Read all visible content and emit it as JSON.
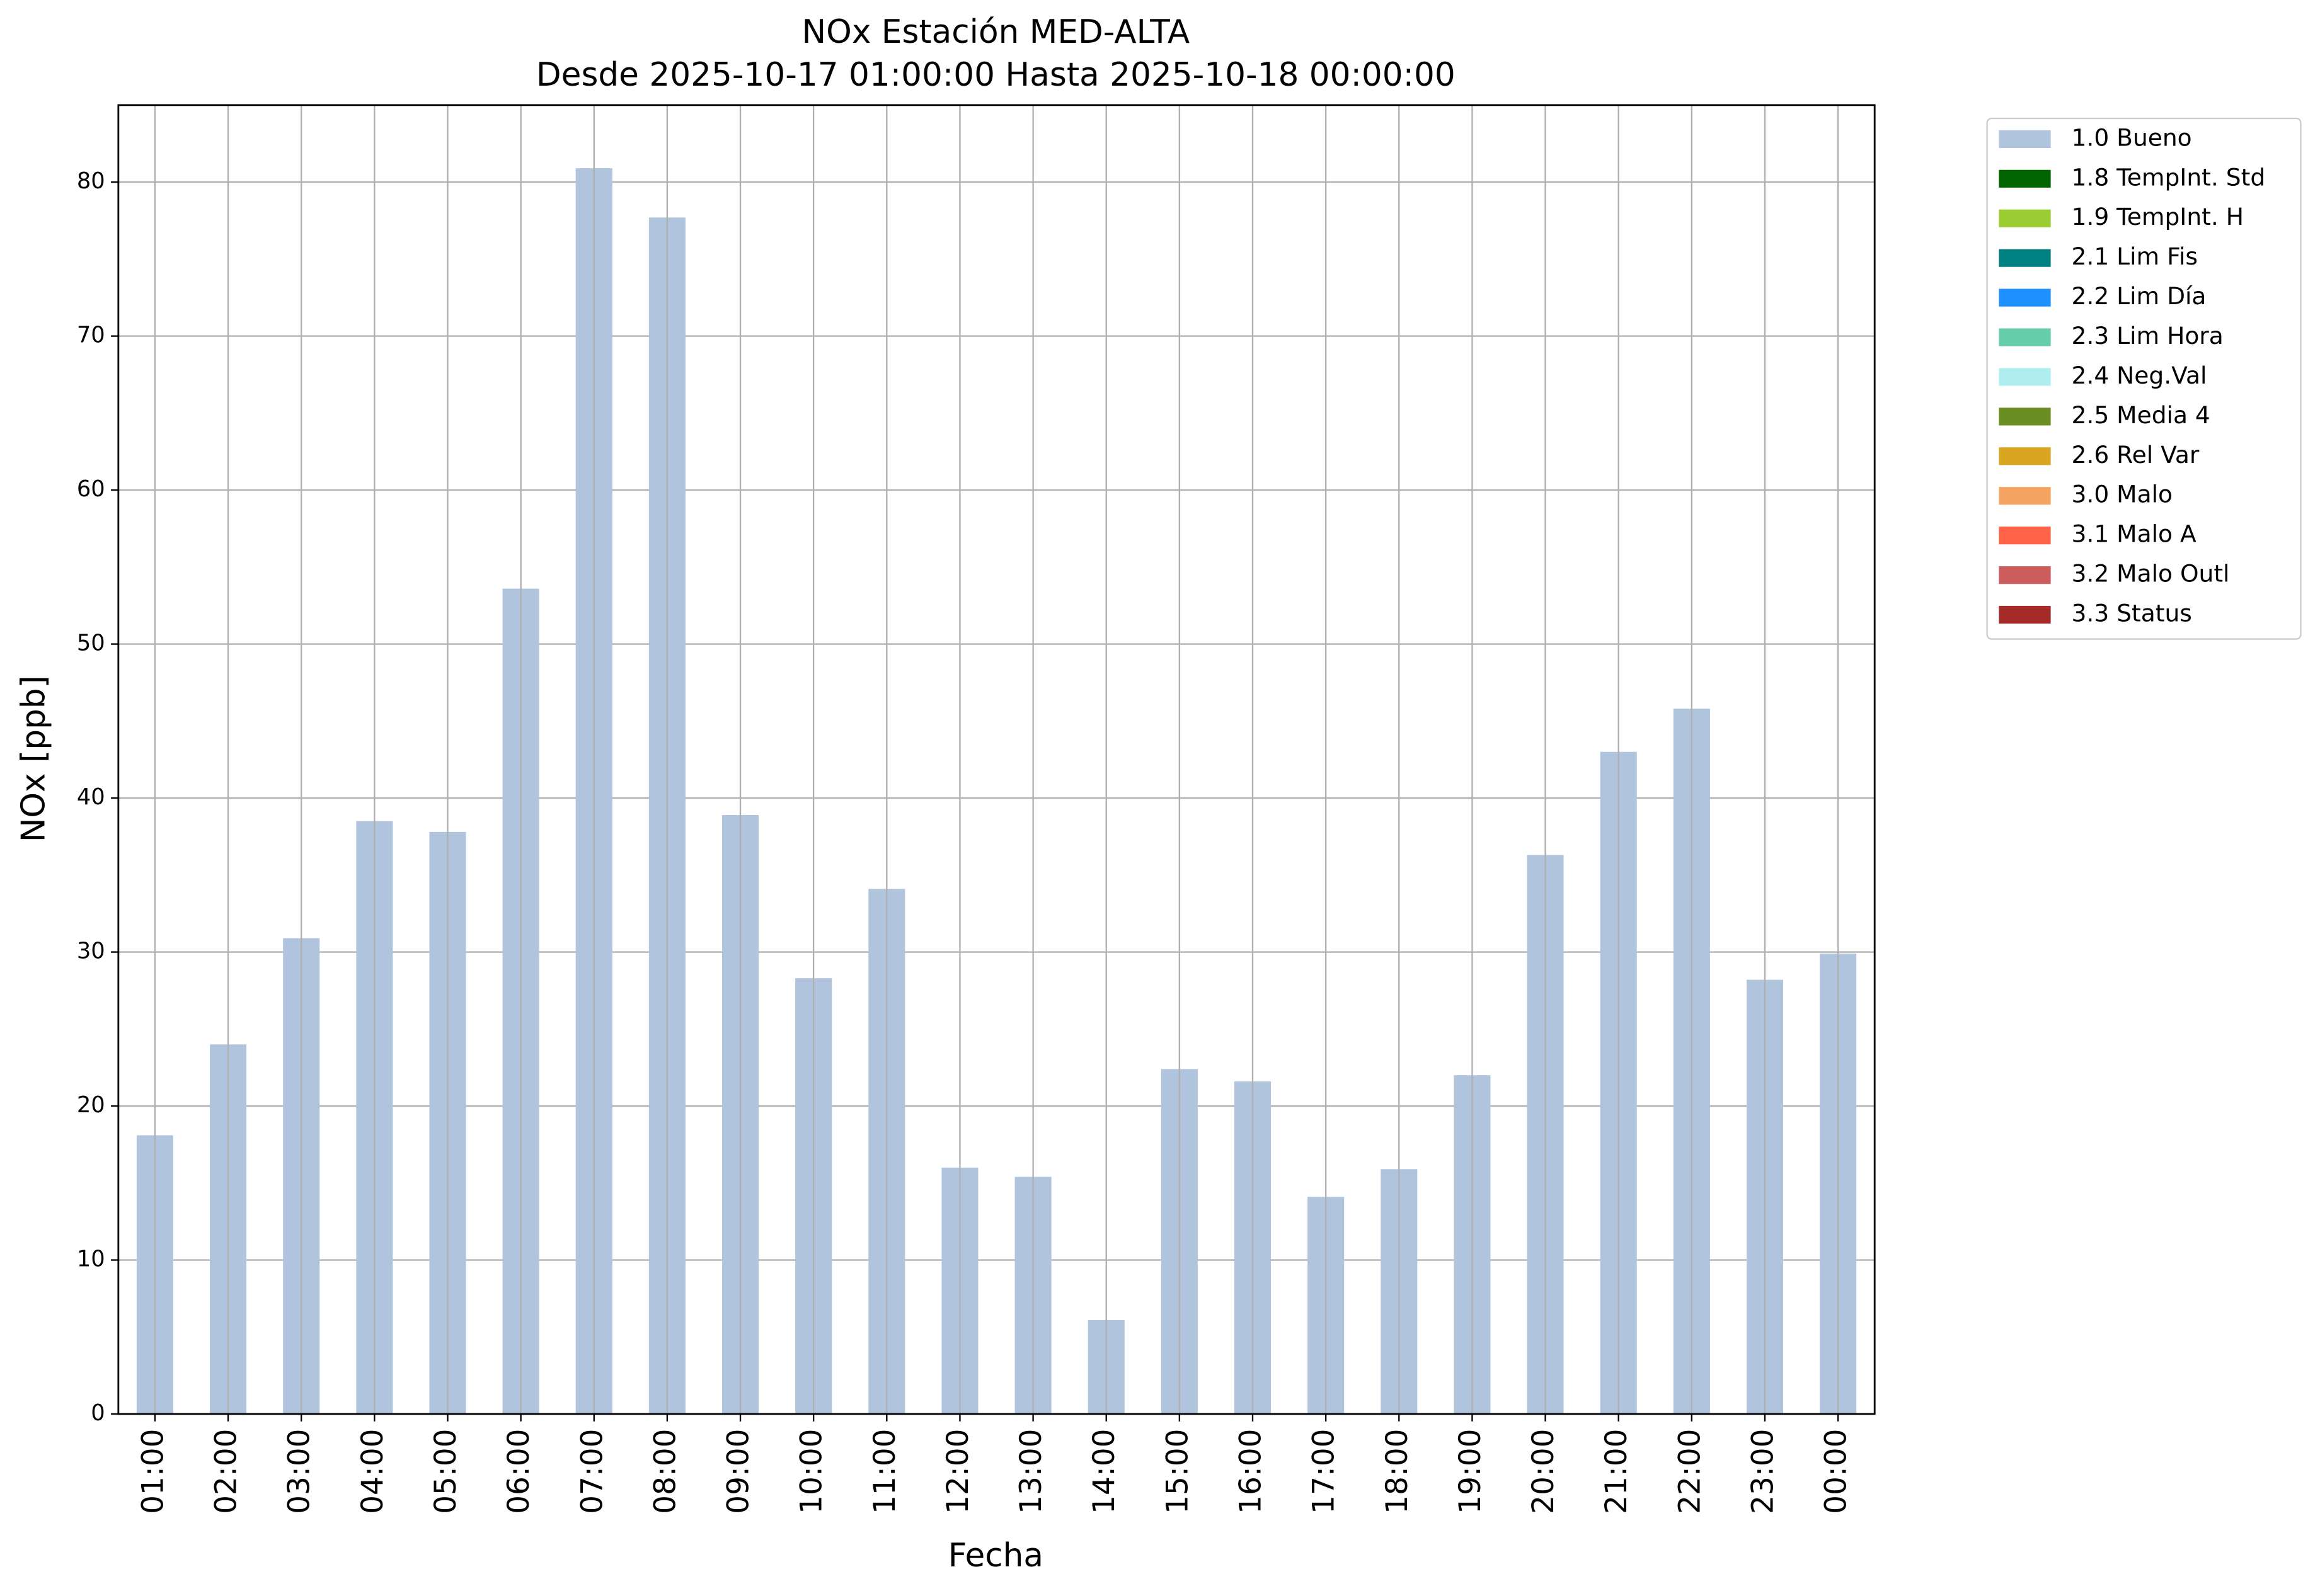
{
  "chart_data": {
    "type": "bar",
    "stacked": true,
    "title": "NOx Estación MED-ALTA",
    "subtitle": "Desde 2025-10-17 01:00:00 Hasta 2025-10-18 00:00:00",
    "x_label": "Fecha",
    "y_label": "NOx [ppb]",
    "categories": [
      "01:00",
      "02:00",
      "03:00",
      "04:00",
      "05:00",
      "06:00",
      "07:00",
      "08:00",
      "09:00",
      "10:00",
      "11:00",
      "12:00",
      "13:00",
      "14:00",
      "15:00",
      "16:00",
      "17:00",
      "18:00",
      "19:00",
      "20:00",
      "21:00",
      "22:00",
      "23:00",
      "00:00"
    ],
    "series": [
      {
        "name": "1.0 Bueno",
        "color": "#b0c4de",
        "values": [
          18.1,
          24.0,
          30.9,
          38.5,
          37.8,
          53.6,
          80.9,
          77.7,
          38.9,
          28.3,
          34.1,
          16.0,
          15.4,
          6.1,
          22.4,
          21.6,
          14.1,
          15.9,
          22.0,
          36.3,
          43.0,
          45.8,
          28.2,
          29.9
        ]
      },
      {
        "name": "1.8 TempInt. Std",
        "color": "#006400"
      },
      {
        "name": "1.9 TempInt. H",
        "color": "#9acd32"
      },
      {
        "name": "2.1 Lim Fis",
        "color": "#008080"
      },
      {
        "name": "2.2 Lim Día",
        "color": "#1e90ff"
      },
      {
        "name": "2.3 Lim Hora",
        "color": "#66cdaa"
      },
      {
        "name": "2.4 Neg.Val",
        "color": "#afeeee"
      },
      {
        "name": "2.5 Media 4",
        "color": "#6b8e23"
      },
      {
        "name": "2.6 Rel Var",
        "color": "#daa520"
      },
      {
        "name": "3.0 Malo",
        "color": "#f4a460"
      },
      {
        "name": "3.1 Malo A",
        "color": "#ff6347"
      },
      {
        "name": "3.2 Malo Outl",
        "color": "#cd5c5c"
      },
      {
        "name": "3.3 Status",
        "color": "#a52a2a"
      }
    ],
    "ylim": [
      0,
      85
    ],
    "yticks": [
      0,
      10,
      20,
      30,
      40,
      50,
      60,
      70,
      80
    ],
    "grid": true,
    "legend": "outside-upper-right"
  }
}
